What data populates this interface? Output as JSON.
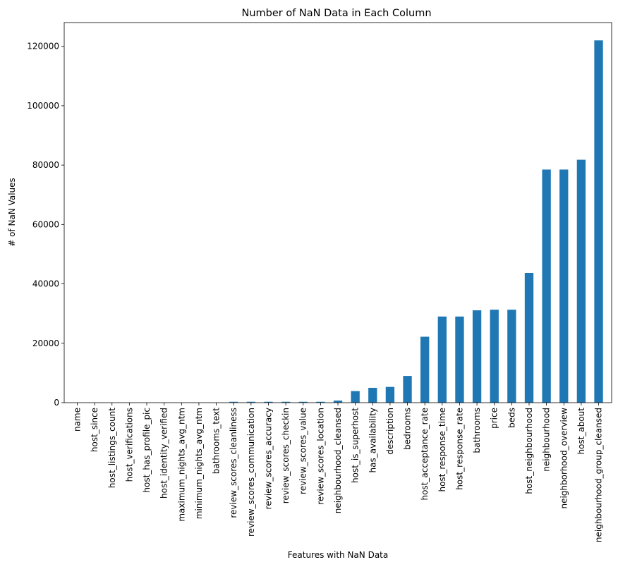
{
  "chart_data": {
    "type": "bar",
    "title": "Number of NaN Data in Each Column",
    "xlabel": "Features with NaN Data",
    "ylabel": "# of NaN Values",
    "ylim": [
      0,
      128000
    ],
    "yticks": [
      0,
      20000,
      40000,
      60000,
      80000,
      100000,
      120000
    ],
    "grid": false,
    "legend": "none",
    "bar_color": "#1f77b4",
    "categories": [
      "name",
      "host_since",
      "host_listings_count",
      "host_verifications",
      "host_has_profile_pic",
      "host_identity_verified",
      "maximum_nights_avg_ntm",
      "minimum_nights_avg_ntm",
      "bathrooms_text",
      "review_scores_cleanliness",
      "review_scores_communication",
      "review_scores_accuracy",
      "review_scores_checkin",
      "review_scores_value",
      "review_scores_location",
      "neighbourhood_cleansed",
      "host_is_superhost",
      "has_availability",
      "description",
      "bedrooms",
      "host_acceptance_rate",
      "host_response_time",
      "host_response_rate",
      "bathrooms",
      "price",
      "beds",
      "host_neighbourhood",
      "neighbourhood",
      "neighborhood_overview",
      "host_about",
      "neighbourhood_group_cleansed"
    ],
    "values": [
      0,
      0,
      0,
      0,
      0,
      0,
      0,
      0,
      0,
      300,
      300,
      300,
      300,
      300,
      300,
      700,
      3900,
      5000,
      5300,
      9000,
      22200,
      29000,
      29000,
      31100,
      31300,
      31300,
      43700,
      78500,
      78500,
      81800,
      122000
    ]
  }
}
